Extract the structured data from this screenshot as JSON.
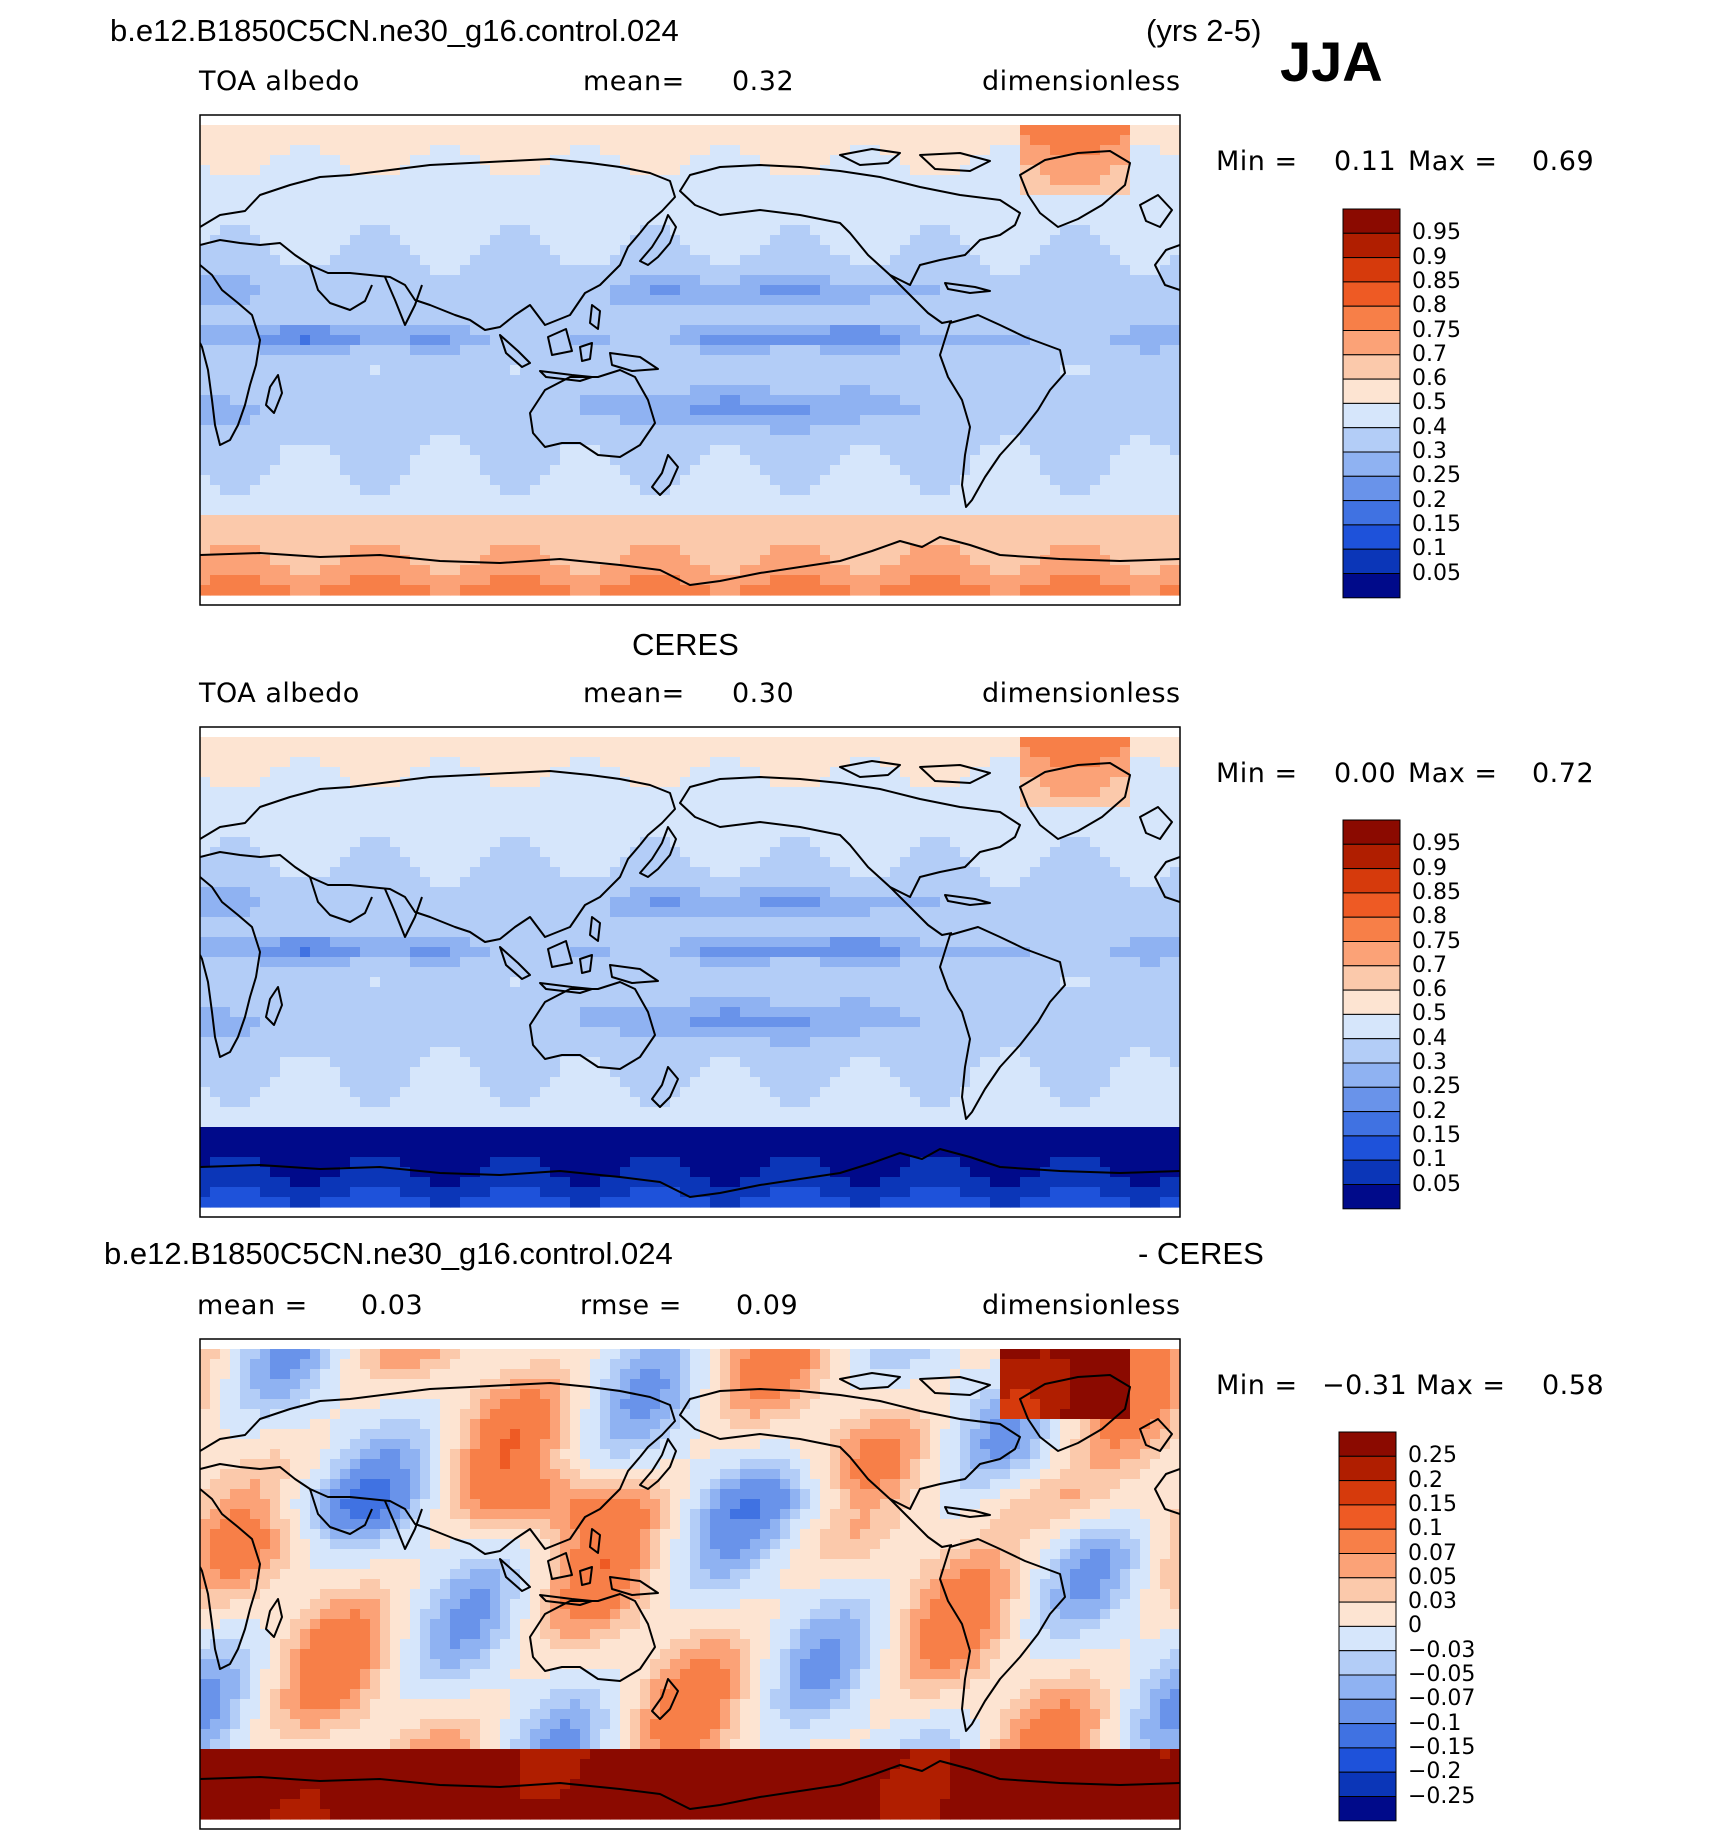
{
  "figure": {
    "case_name": "b.e12.B1850C5CN.ne30_g16.control.024",
    "years": "(yrs 2-5)",
    "season": "JJA"
  },
  "panels": [
    {
      "title": "",
      "variable": "TOA albedo",
      "stat1_label": "mean=",
      "stat1_value": "0.32",
      "stat2_label": "",
      "stat2_value": "",
      "units": "dimensionless",
      "min_label": "Min =",
      "min_value": "0.11",
      "max_label": "Max =",
      "max_value": "0.69",
      "levels": [
        "0.95",
        "0.9",
        "0.85",
        "0.8",
        "0.75",
        "0.7",
        "0.6",
        "0.5",
        "0.4",
        "0.3",
        "0.25",
        "0.2",
        "0.15",
        "0.1",
        "0.05"
      ],
      "colors": [
        "#8b0a00",
        "#b01e00",
        "#d63a0c",
        "#ee5a24",
        "#f77f48",
        "#fba277",
        "#fbc9ab",
        "#fde4d2",
        "#d6e6fb",
        "#b3cdf7",
        "#8fb2f2",
        "#6993ea",
        "#4072e2",
        "#1e52da",
        "#0b36b8",
        "#000a8a"
      ]
    },
    {
      "title": "CERES",
      "variable": "TOA albedo",
      "stat1_label": "mean=",
      "stat1_value": "0.30",
      "stat2_label": "",
      "stat2_value": "",
      "units": "dimensionless",
      "min_label": "Min =",
      "min_value": "0.00",
      "max_label": "Max =",
      "max_value": "0.72",
      "levels": [
        "0.95",
        "0.9",
        "0.85",
        "0.8",
        "0.75",
        "0.7",
        "0.6",
        "0.5",
        "0.4",
        "0.3",
        "0.25",
        "0.2",
        "0.15",
        "0.1",
        "0.05"
      ],
      "colors": [
        "#8b0a00",
        "#b01e00",
        "#d63a0c",
        "#ee5a24",
        "#f77f48",
        "#fba277",
        "#fbc9ab",
        "#fde4d2",
        "#d6e6fb",
        "#b3cdf7",
        "#8fb2f2",
        "#6993ea",
        "#4072e2",
        "#1e52da",
        "#0b36b8",
        "#000a8a"
      ]
    },
    {
      "title_left": "b.e12.B1850C5CN.ne30_g16.control.024",
      "title_right": "- CERES",
      "stat1_label": "mean =",
      "stat1_value": "0.03",
      "stat2_label": "rmse =",
      "stat2_value": "0.09",
      "units": "dimensionless",
      "min_label": "Min =",
      "min_value": "−0.31",
      "max_label": "Max =",
      "max_value": "0.58",
      "levels": [
        "0.25",
        "0.2",
        "0.15",
        "0.1",
        "0.07",
        "0.05",
        "0.03",
        "0",
        "−0.03",
        "−0.05",
        "−0.07",
        "−0.1",
        "−0.15",
        "−0.2",
        "−0.25"
      ],
      "colors": [
        "#8b0a00",
        "#b01e00",
        "#d63a0c",
        "#ee5a24",
        "#f77f48",
        "#fba277",
        "#fbc9ab",
        "#fde4d2",
        "#d6e6fb",
        "#b3cdf7",
        "#8fb2f2",
        "#6993ea",
        "#4072e2",
        "#1e52da",
        "#0b36b8",
        "#000a8a"
      ]
    }
  ]
}
